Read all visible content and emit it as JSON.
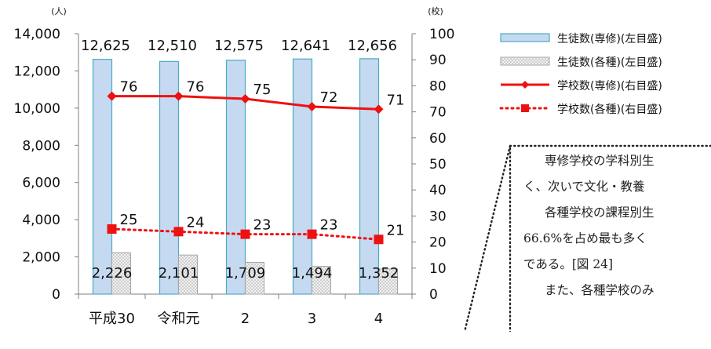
{
  "chart_data": {
    "type": "bar",
    "categories": [
      "平成30",
      "令和元",
      "2",
      "3",
      "4"
    ],
    "left_axis": {
      "unit": "(人)",
      "ylim": [
        0,
        14000
      ],
      "ticks": [
        "0",
        "2,000",
        "4,000",
        "6,000",
        "8,000",
        "10,000",
        "12,000",
        "14,000"
      ]
    },
    "right_axis": {
      "unit": "(校)",
      "ylim": [
        0,
        100
      ],
      "ticks": [
        "0",
        "10",
        "20",
        "30",
        "40",
        "50",
        "60",
        "70",
        "80",
        "90",
        "100"
      ]
    },
    "series": [
      {
        "name": "生徒数(専修)(左目盛)",
        "kind": "bar",
        "axis": "left",
        "color": "#c5d9f1",
        "edge": "#4bacc6",
        "values": [
          12625,
          12510,
          12575,
          12641,
          12656
        ],
        "labels": [
          "12,625",
          "12,510",
          "12,575",
          "12,641",
          "12,656"
        ]
      },
      {
        "name": "生徒数(各種)(左目盛)",
        "kind": "bar",
        "axis": "left",
        "color": "#dcdcdc",
        "edge": "#a6a6a6",
        "values": [
          2226,
          2101,
          1709,
          1494,
          1352
        ],
        "labels": [
          "2,226",
          "2,101",
          "1,709",
          "1,494",
          "1,352"
        ]
      },
      {
        "name": "学校数(専修)(右目盛)",
        "kind": "line",
        "axis": "right",
        "color": "#ee1111",
        "values": [
          76,
          76,
          75,
          72,
          71
        ],
        "labels": [
          "76",
          "76",
          "75",
          "72",
          "71"
        ]
      },
      {
        "name": "学校数(各種)(右目盛)",
        "kind": "line-dotted",
        "axis": "right",
        "color": "#ee1111",
        "values": [
          25,
          24,
          23,
          23,
          21
        ],
        "labels": [
          "25",
          "24",
          "23",
          "23",
          "21"
        ]
      }
    ]
  },
  "note": {
    "lines": [
      "専修学校の学科別生",
      "く、次いで文化・教養",
      "各種学校の課程別生",
      "66.6%を占め最も多く",
      "である。[図 24]",
      "また、各種学校のみ"
    ]
  }
}
